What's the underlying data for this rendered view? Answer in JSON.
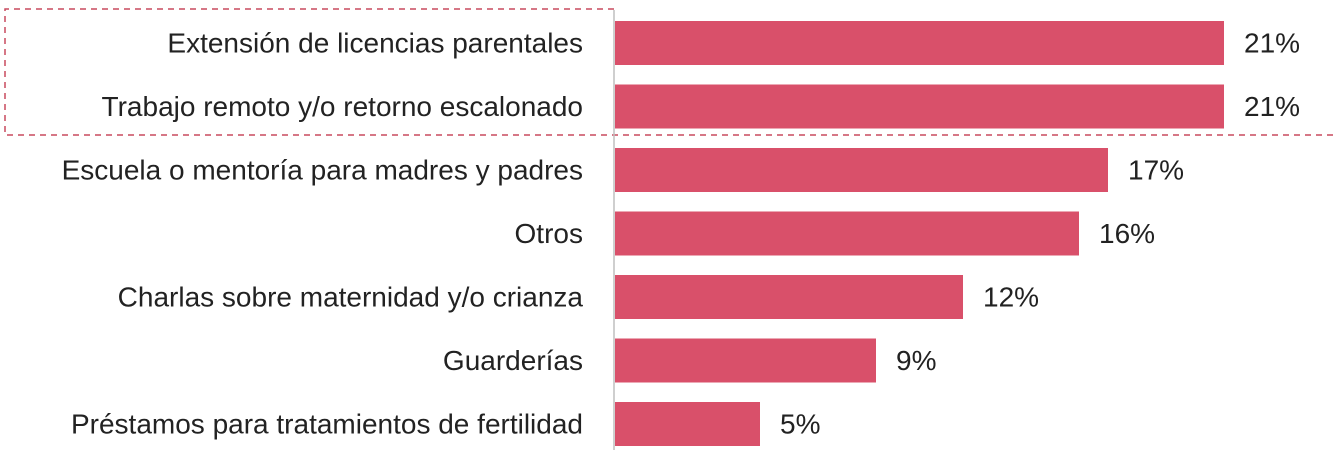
{
  "chart_data": {
    "type": "barh",
    "categories": [
      "Extensión de licencias parentales",
      "Trabajo remoto y/o retorno escalonado",
      "Escuela o mentoría para madres y padres",
      "Otros",
      "Charlas sobre maternidad y/o crianza",
      "Guarderías",
      "Préstamos para tratamientos de fertilidad"
    ],
    "values": [
      21,
      21,
      17,
      16,
      12,
      9,
      5
    ],
    "value_labels": [
      "21%",
      "21%",
      "17%",
      "16%",
      "12%",
      "9%",
      "5%"
    ],
    "color": "#d9506a"
  }
}
